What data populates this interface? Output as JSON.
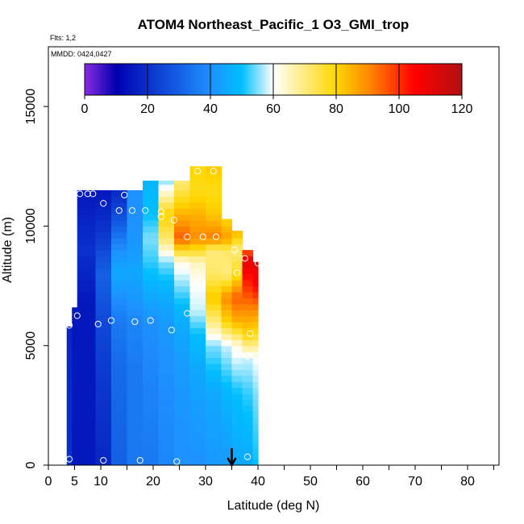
{
  "chart_data": {
    "type": "heatmap",
    "title": "ATOM4 Northeast_Pacific_1 O3_GMI_trop",
    "flights_label": "Flts: 1,2",
    "dates_label": "MMDD: 0424,0427",
    "xlabel": "Latitude (deg N)",
    "ylabel": "Altitude (m)",
    "xlim": [
      0,
      86
    ],
    "ylim": [
      0,
      17500
    ],
    "x_ticks": [
      0,
      5,
      10,
      20,
      30,
      40,
      50,
      60,
      70,
      80
    ],
    "y_ticks": [
      0,
      5000,
      10000,
      15000
    ],
    "colorbar": {
      "min": 0,
      "max": 120,
      "ticks": [
        0,
        20,
        40,
        60,
        80,
        100,
        120
      ],
      "colors": [
        "#8a2be2",
        "#0000b0",
        "#1e90ff",
        "#00bfff",
        "#ffffff",
        "#ffd700",
        "#ff8c00",
        "#ff0000",
        "#b01010"
      ],
      "stops": [
        0,
        10,
        40,
        50,
        60,
        80,
        90,
        105,
        120
      ]
    },
    "marker_latitude": 35,
    "observations": [
      {
        "x": 4,
        "y": 250
      },
      {
        "x": 10.5,
        "y": 200
      },
      {
        "x": 17.5,
        "y": 200
      },
      {
        "x": 24.5,
        "y": 150
      },
      {
        "x": 38,
        "y": 350
      },
      {
        "x": 4,
        "y": 5850
      },
      {
        "x": 5.5,
        "y": 6250
      },
      {
        "x": 9.5,
        "y": 5900
      },
      {
        "x": 12,
        "y": 6050
      },
      {
        "x": 16.5,
        "y": 6000
      },
      {
        "x": 19.5,
        "y": 6050
      },
      {
        "x": 23.5,
        "y": 5650
      },
      {
        "x": 26.5,
        "y": 6350
      },
      {
        "x": 38.5,
        "y": 5500
      },
      {
        "x": 38,
        "y": 4550
      },
      {
        "x": 40,
        "y": 4350
      },
      {
        "x": 6,
        "y": 11350
      },
      {
        "x": 7.5,
        "y": 11350
      },
      {
        "x": 8.5,
        "y": 11350
      },
      {
        "x": 14.5,
        "y": 11300
      },
      {
        "x": 10.5,
        "y": 10950
      },
      {
        "x": 13.5,
        "y": 10650
      },
      {
        "x": 16,
        "y": 10650
      },
      {
        "x": 18.5,
        "y": 10650
      },
      {
        "x": 21.5,
        "y": 10600
      },
      {
        "x": 21.5,
        "y": 10400
      },
      {
        "x": 24,
        "y": 10250
      },
      {
        "x": 26.5,
        "y": 9550
      },
      {
        "x": 29.5,
        "y": 9550
      },
      {
        "x": 32,
        "y": 9550
      },
      {
        "x": 35.5,
        "y": 9000
      },
      {
        "x": 37.5,
        "y": 8650
      },
      {
        "x": 36,
        "y": 8050
      },
      {
        "x": 40,
        "y": 8450
      },
      {
        "x": 28.5,
        "y": 12300
      },
      {
        "x": 31.5,
        "y": 12300
      }
    ],
    "columns": [
      {
        "x": [
          3.5,
          4.5
        ],
        "top": 5800,
        "levels": [
          [
            0,
            20
          ],
          [
            5000,
            18
          ],
          [
            5800,
            18
          ]
        ]
      },
      {
        "x": [
          4.5,
          6
        ],
        "top": 6600,
        "levels": [
          [
            0,
            15
          ],
          [
            6000,
            15
          ],
          [
            6600,
            15
          ]
        ]
      },
      {
        "x": [
          5.5,
          7
        ],
        "top": 11500,
        "levels": [
          [
            0,
            15
          ],
          [
            7000,
            15
          ],
          [
            9000,
            20
          ],
          [
            11500,
            15
          ]
        ]
      },
      {
        "x": [
          7,
          9
        ],
        "top": 11500,
        "levels": [
          [
            0,
            15
          ],
          [
            7000,
            15
          ],
          [
            9000,
            20
          ],
          [
            10000,
            18
          ],
          [
            11500,
            15
          ]
        ]
      },
      {
        "x": [
          9,
          12
        ],
        "top": 11500,
        "levels": [
          [
            0,
            18
          ],
          [
            4000,
            22
          ],
          [
            6000,
            25
          ],
          [
            8000,
            30
          ],
          [
            10000,
            20
          ],
          [
            11500,
            15
          ]
        ]
      },
      {
        "x": [
          12,
          15
        ],
        "top": 11500,
        "levels": [
          [
            0,
            30
          ],
          [
            4000,
            32
          ],
          [
            6000,
            35
          ],
          [
            8000,
            45
          ],
          [
            9000,
            40
          ],
          [
            10000,
            30
          ],
          [
            11500,
            18
          ]
        ]
      },
      {
        "x": [
          15,
          18
        ],
        "top": 11500,
        "levels": [
          [
            0,
            35
          ],
          [
            4000,
            35
          ],
          [
            6000,
            38
          ],
          [
            8000,
            45
          ],
          [
            9000,
            42
          ],
          [
            10500,
            40
          ],
          [
            11500,
            40
          ]
        ]
      },
      {
        "x": [
          18,
          21
        ],
        "top": 11900,
        "levels": [
          [
            0,
            35
          ],
          [
            4000,
            38
          ],
          [
            6000,
            40
          ],
          [
            7000,
            45
          ],
          [
            8500,
            52
          ],
          [
            9500,
            55
          ],
          [
            10500,
            50
          ],
          [
            11900,
            48
          ]
        ]
      },
      {
        "x": [
          21,
          24
        ],
        "top": 11900,
        "levels": [
          [
            0,
            38
          ],
          [
            4000,
            40
          ],
          [
            6000,
            42
          ],
          [
            7500,
            48
          ],
          [
            8500,
            55
          ],
          [
            9500,
            72
          ],
          [
            10500,
            80
          ],
          [
            11900,
            55
          ]
        ]
      },
      {
        "x": [
          24,
          27
        ],
        "top": 11900,
        "levels": [
          [
            0,
            40
          ],
          [
            4000,
            42
          ],
          [
            5500,
            45
          ],
          [
            6500,
            48
          ],
          [
            7500,
            55
          ],
          [
            8500,
            62
          ],
          [
            9500,
            95
          ],
          [
            10500,
            85
          ],
          [
            11900,
            70
          ]
        ]
      },
      {
        "x": [
          27,
          30
        ],
        "top": 12500,
        "levels": [
          [
            0,
            40
          ],
          [
            4000,
            45
          ],
          [
            5500,
            50
          ],
          [
            6500,
            58
          ],
          [
            7500,
            60
          ],
          [
            8500,
            65
          ],
          [
            9500,
            90
          ],
          [
            10500,
            85
          ],
          [
            11500,
            78
          ],
          [
            12500,
            80
          ]
        ]
      },
      {
        "x": [
          30,
          33
        ],
        "top": 12500,
        "levels": [
          [
            0,
            42
          ],
          [
            3000,
            45
          ],
          [
            5000,
            55
          ],
          [
            6000,
            70
          ],
          [
            7000,
            82
          ],
          [
            8000,
            72
          ],
          [
            9000,
            70
          ],
          [
            9500,
            92
          ],
          [
            10500,
            82
          ],
          [
            11500,
            78
          ],
          [
            12500,
            82
          ]
        ]
      },
      {
        "x": [
          33,
          35
        ],
        "top": 10300,
        "levels": [
          [
            0,
            42
          ],
          [
            3000,
            48
          ],
          [
            5000,
            58
          ],
          [
            6000,
            80
          ],
          [
            7000,
            90
          ],
          [
            8000,
            70
          ],
          [
            9000,
            72
          ],
          [
            9500,
            88
          ],
          [
            10300,
            80
          ]
        ]
      },
      {
        "x": [
          35,
          37
        ],
        "top": 9800,
        "levels": [
          [
            0,
            45
          ],
          [
            3000,
            50
          ],
          [
            5000,
            62
          ],
          [
            6000,
            85
          ],
          [
            7000,
            95
          ],
          [
            8000,
            78
          ],
          [
            9000,
            70
          ],
          [
            9800,
            85
          ]
        ]
      },
      {
        "x": [
          37,
          39
        ],
        "top": 9000,
        "levels": [
          [
            0,
            45
          ],
          [
            3000,
            52
          ],
          [
            4500,
            58
          ],
          [
            5500,
            80
          ],
          [
            6500,
            90
          ],
          [
            7500,
            100
          ],
          [
            8500,
            110
          ],
          [
            9000,
            95
          ]
        ]
      },
      {
        "x": [
          39,
          40
        ],
        "top": 8500,
        "levels": [
          [
            0,
            50
          ],
          [
            3000,
            55
          ],
          [
            4500,
            60
          ],
          [
            5500,
            78
          ],
          [
            6500,
            90
          ],
          [
            7500,
            105
          ],
          [
            8500,
            110
          ]
        ]
      }
    ]
  }
}
